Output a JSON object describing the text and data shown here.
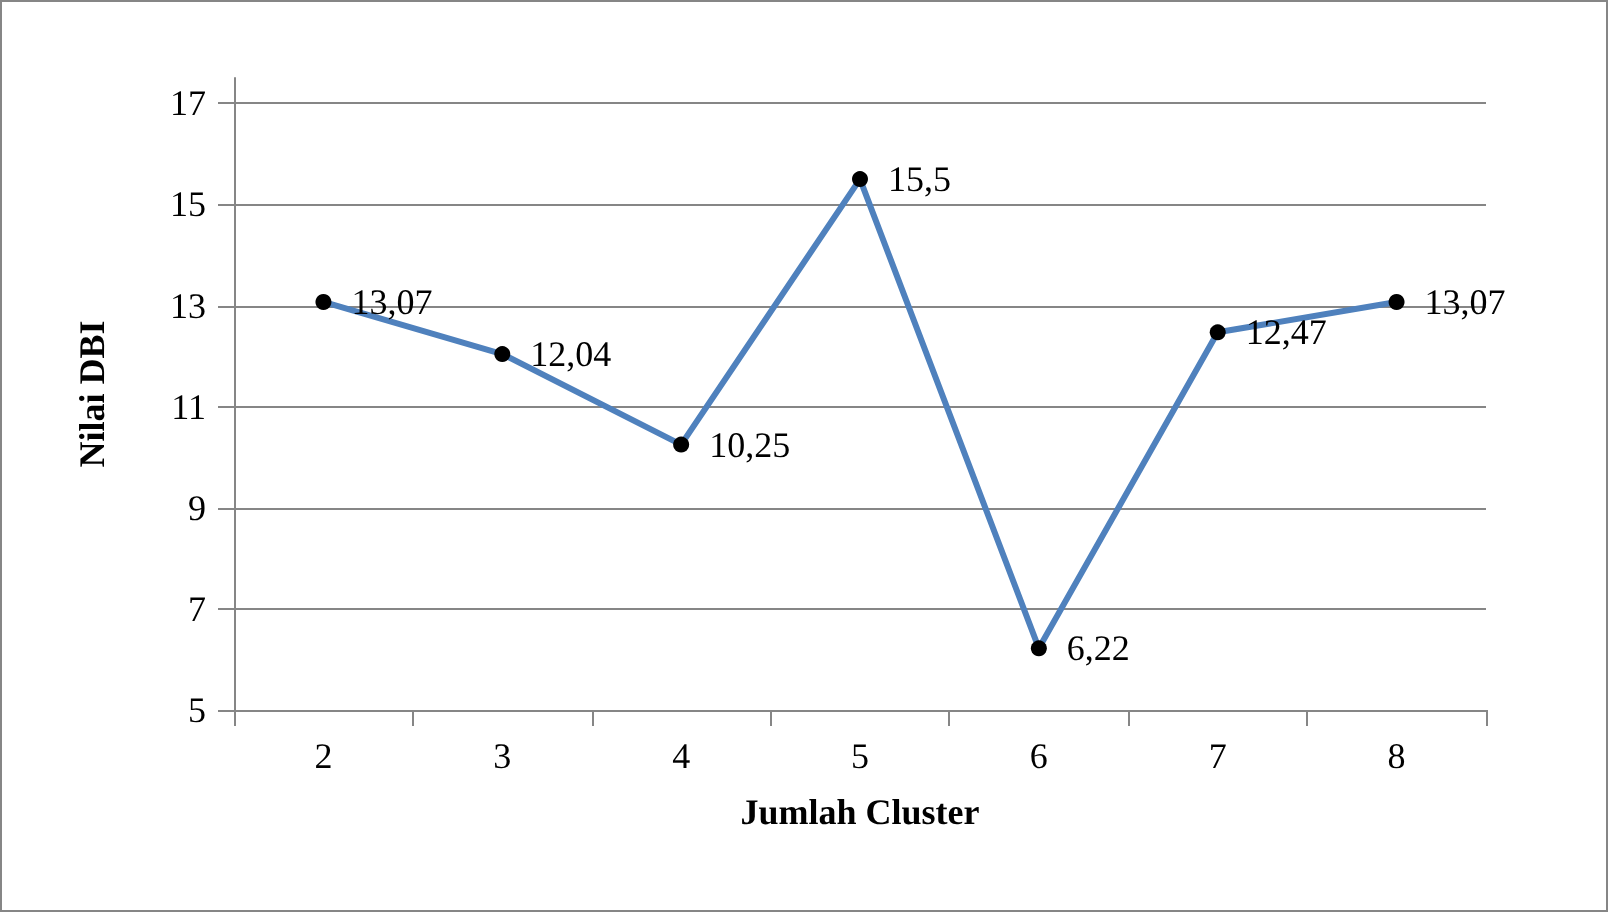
{
  "chart_data": {
    "type": "line",
    "xlabel": "Jumlah Cluster",
    "ylabel": "Nilai DBI",
    "categories": [
      "2",
      "3",
      "4",
      "5",
      "6",
      "7",
      "8"
    ],
    "series": [
      {
        "color": "#4f81bd",
        "values": [
          13.07,
          12.04,
          10.25,
          15.5,
          6.22,
          12.47,
          13.07
        ],
        "value_labels": [
          "13,07",
          "12,04",
          "10,25",
          "15,5",
          "6,22",
          "12,47",
          "13,07"
        ]
      }
    ],
    "ylim": [
      5,
      17.5
    ],
    "yticks": [
      5,
      7,
      9,
      11,
      13,
      15,
      17
    ],
    "grid": "y",
    "marker": "circle",
    "line_style": "solid"
  }
}
